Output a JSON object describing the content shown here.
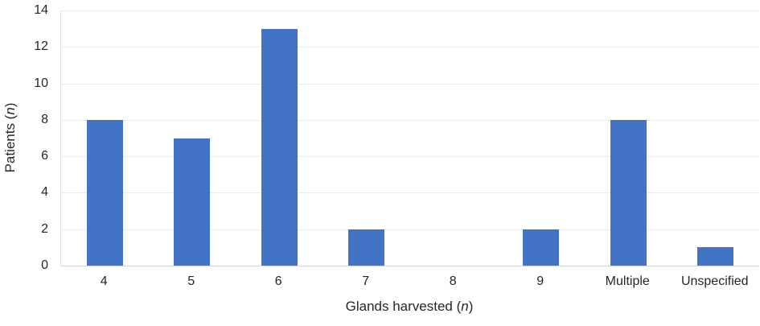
{
  "figure": {
    "background": "#FFFFFF"
  },
  "chart_data": {
    "type": "bar",
    "title": "",
    "categories": [
      "4",
      "5",
      "6",
      "7",
      "8",
      "9",
      "Multiple",
      "Unspecified"
    ],
    "values": [
      8,
      7,
      13,
      2,
      0,
      2,
      8,
      1
    ],
    "xlabel": "Glands harvested (n)",
    "ylabel": "Patients (n)",
    "xlabel_parts": {
      "text": "Glands harvested (",
      "italic": "n",
      "close": ")"
    },
    "ylabel_parts": {
      "text": "Patients (",
      "italic": "n",
      "close": ")"
    },
    "ylim": [
      0,
      14
    ],
    "ytick_step": 2,
    "yticks": [
      "0",
      "2",
      "4",
      "6",
      "8",
      "10",
      "12",
      "14"
    ],
    "grid": "horizontal",
    "legend": "none",
    "colors": {
      "bar": "#4472C4",
      "gridline": "#EBEBEB",
      "axis_line": "#D5D5D5",
      "text": "#262626"
    }
  }
}
